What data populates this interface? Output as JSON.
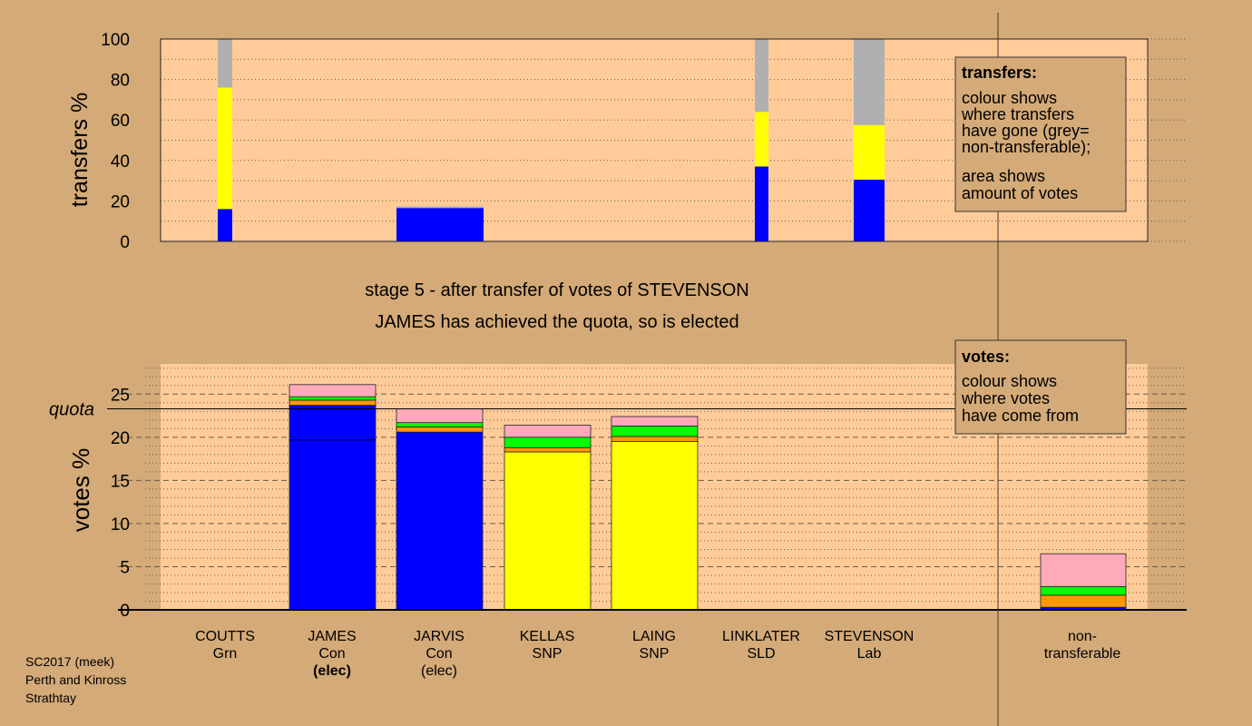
{
  "page": {
    "caption_line1": "stage 5 - after transfer of votes of STEVENSON",
    "caption_line2": "JAMES has achieved the quota, so is elected",
    "footer": [
      "SC2017 (meek)",
      "Perth and Kinross",
      "Strathtay"
    ]
  },
  "colors": {
    "background": "#d4aa78",
    "plot_background": "#ffcc99",
    "Con": "#0000ff",
    "SNP": "#ffff00",
    "Grn": "#00ff00",
    "SLD": "#ff9900",
    "Lab": "#ffaabb",
    "non_transferable": "#b0b0b0"
  },
  "legends": {
    "transfers": {
      "title": "transfers:",
      "lines1": [
        "colour shows",
        "where transfers",
        "have gone (grey=",
        "non-transferable);"
      ],
      "lines2": [
        "area shows",
        "amount of votes"
      ]
    },
    "votes": {
      "title": "votes:",
      "lines": [
        "colour shows",
        "where votes",
        "have come from"
      ]
    }
  },
  "chart_data": [
    {
      "type": "bar",
      "chart": "transfers",
      "ylabel": "transfers %",
      "ylim": [
        0,
        100
      ],
      "yticks": [
        0,
        20,
        40,
        60,
        80,
        100
      ],
      "columns": [
        {
          "candidate": "COUTTS",
          "segments": [
            {
              "party": "Con",
              "value": 16
            },
            {
              "party": "SNP",
              "value": 60
            },
            {
              "party": "non_transferable",
              "value": 24
            }
          ]
        },
        {
          "candidate": "JAMES",
          "segments": [
            {
              "party": "Con",
              "value": 16.5
            },
            {
              "party": "non_transferable",
              "value": 0.8
            }
          ]
        },
        {
          "candidate": "LINKLATER",
          "segments": [
            {
              "party": "Con",
              "value": 37
            },
            {
              "party": "SNP",
              "value": 27
            },
            {
              "party": "non_transferable",
              "value": 36
            }
          ]
        },
        {
          "candidate": "STEVENSON",
          "segments": [
            {
              "party": "Con",
              "value": 30.5
            },
            {
              "party": "SNP",
              "value": 27
            },
            {
              "party": "non_transferable",
              "value": 42.5
            }
          ]
        }
      ]
    },
    {
      "type": "bar",
      "chart": "votes",
      "ylabel": "votes %",
      "ylim": [
        0,
        28.5
      ],
      "yticks": [
        0,
        5,
        10,
        15,
        20,
        25
      ],
      "quota": 23.3,
      "quota_label": "quota",
      "columns": [
        {
          "candidate": "COUTTS",
          "party": "Grn",
          "status": "",
          "segments": []
        },
        {
          "candidate": "JAMES",
          "party": "Con",
          "status": "(elec)",
          "first_pref": 19.7,
          "segments": [
            {
              "party": "Con",
              "value": 23.7
            },
            {
              "party": "SLD",
              "value": 0.6
            },
            {
              "party": "Grn",
              "value": 0.4
            },
            {
              "party": "Lab",
              "value": 1.4
            }
          ]
        },
        {
          "candidate": "JARVIS",
          "party": "Con",
          "status": "(elec)",
          "segments": [
            {
              "party": "Con",
              "value": 20.6
            },
            {
              "party": "SLD",
              "value": 0.6
            },
            {
              "party": "Grn",
              "value": 0.5
            },
            {
              "party": "Lab",
              "value": 1.6
            }
          ]
        },
        {
          "candidate": "KELLAS",
          "party": "SNP",
          "status": "",
          "segments": [
            {
              "party": "SNP",
              "value": 18.3
            },
            {
              "party": "SLD",
              "value": 0.5
            },
            {
              "party": "Grn",
              "value": 1.2
            },
            {
              "party": "Lab",
              "value": 1.4
            }
          ]
        },
        {
          "candidate": "LAING",
          "party": "SNP",
          "status": "",
          "segments": [
            {
              "party": "SNP",
              "value": 19.5
            },
            {
              "party": "SLD",
              "value": 0.6
            },
            {
              "party": "Grn",
              "value": 1.2
            },
            {
              "party": "Lab",
              "value": 1.1
            }
          ]
        },
        {
          "candidate": "LINKLATER",
          "party": "SLD",
          "status": "",
          "segments": []
        },
        {
          "candidate": "STEVENSON",
          "party": "Lab",
          "status": "",
          "segments": []
        },
        {
          "candidate": "non-",
          "party": "transferable",
          "status": "",
          "segments": [
            {
              "party": "Con",
              "value": 0.3
            },
            {
              "party": "SLD",
              "value": 1.4
            },
            {
              "party": "Grn",
              "value": 1.0
            },
            {
              "party": "Lab",
              "value": 3.8
            }
          ]
        }
      ]
    }
  ]
}
